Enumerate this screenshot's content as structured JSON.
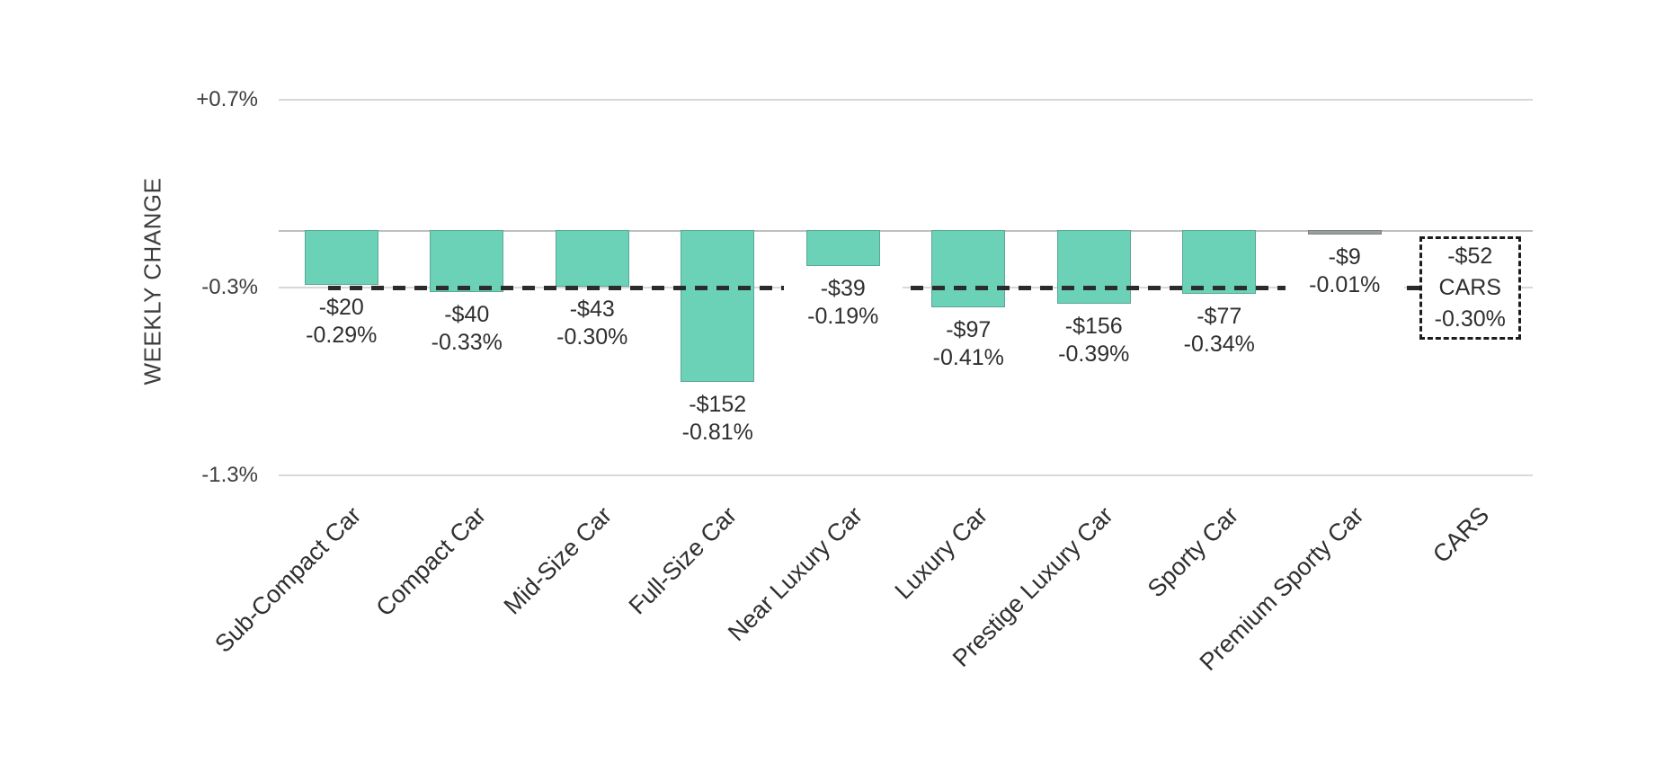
{
  "chart_data": {
    "type": "bar",
    "title": "",
    "xlabel": "",
    "ylabel": "WEEKLY CHANGE",
    "ylim": [
      -1.3,
      0.7
    ],
    "grid": "horizontal-light",
    "legend": "none",
    "categories": [
      "Sub-Compact Car",
      "Compact Car",
      "Mid-Size Car",
      "Full-Size Car",
      "Near Luxury Car",
      "Luxury Car",
      "Prestige Luxury Car",
      "Sporty Car",
      "Premium Sporty Car",
      "CARS"
    ],
    "series": [
      {
        "name": "dollar_change",
        "values": [
          -20,
          -40,
          -43,
          -152,
          -39,
          -97,
          -156,
          -77,
          -9,
          -52
        ]
      },
      {
        "name": "percent_change",
        "values": [
          -0.29,
          -0.33,
          -0.3,
          -0.81,
          -0.19,
          -0.41,
          -0.39,
          -0.34,
          -0.01,
          -0.3
        ]
      }
    ],
    "yticks": [
      {
        "value": 0.7,
        "label": "+0.7%"
      },
      {
        "value": -0.3,
        "label": "-0.3%"
      },
      {
        "value": -1.3,
        "label": "-1.3%"
      }
    ],
    "bars": [
      {
        "category": "Sub-Compact Car",
        "dollar_label": "-$20",
        "pct_label": "-0.29%",
        "pct": -0.29,
        "color": "#6BD2B7",
        "summary": false
      },
      {
        "category": "Compact Car",
        "dollar_label": "-$40",
        "pct_label": "-0.33%",
        "pct": -0.33,
        "color": "#6BD2B7",
        "summary": false
      },
      {
        "category": "Mid-Size Car",
        "dollar_label": "-$43",
        "pct_label": "-0.30%",
        "pct": -0.3,
        "color": "#6BD2B7",
        "summary": false
      },
      {
        "category": "Full-Size Car",
        "dollar_label": "-$152",
        "pct_label": "-0.81%",
        "pct": -0.81,
        "color": "#6BD2B7",
        "summary": false
      },
      {
        "category": "Near Luxury Car",
        "dollar_label": "-$39",
        "pct_label": "-0.19%",
        "pct": -0.19,
        "color": "#6BD2B7",
        "summary": false
      },
      {
        "category": "Luxury Car",
        "dollar_label": "-$97",
        "pct_label": "-0.41%",
        "pct": -0.41,
        "color": "#6BD2B7",
        "summary": false
      },
      {
        "category": "Prestige Luxury Car",
        "dollar_label": "-$156",
        "pct_label": "-0.39%",
        "pct": -0.39,
        "color": "#6BD2B7",
        "summary": false
      },
      {
        "category": "Sporty Car",
        "dollar_label": "-$77",
        "pct_label": "-0.34%",
        "pct": -0.34,
        "color": "#6BD2B7",
        "summary": false
      },
      {
        "category": "Premium Sporty Car",
        "dollar_label": "-$9",
        "pct_label": "-0.01%",
        "pct": -0.01,
        "color": "#9c9c9c",
        "summary": false
      },
      {
        "category": "CARS",
        "dollar_label": "-$52",
        "pct_label": "-0.30%",
        "pct": -0.3,
        "box_mid_label": "CARS",
        "summary": true
      }
    ],
    "reference_line": {
      "value": -0.3,
      "style": "dashed",
      "color": "#2b2b2b"
    },
    "colors": {
      "bar_fill": "#6BD2B7",
      "flat_bar_fill": "#9c9c9c",
      "axis_line": "#bfbfbf",
      "gridline": "#d8d8d8",
      "text": "#2f2f2f"
    }
  }
}
